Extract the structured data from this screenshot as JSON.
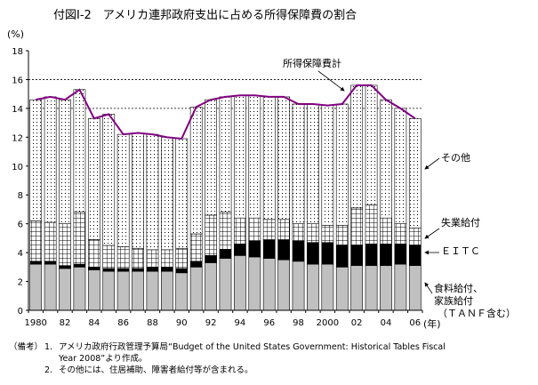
{
  "title": "付図Ⅰ-2　アメリカ連邦政府支出に占める所得保障費の割合",
  "chart_data": {
    "type": "bar",
    "stacked": true,
    "x": [
      1980,
      1981,
      1982,
      1983,
      1984,
      1985,
      1986,
      1987,
      1988,
      1989,
      1990,
      1991,
      1992,
      1993,
      1994,
      1995,
      1996,
      1997,
      1998,
      1999,
      2000,
      2001,
      2002,
      2003,
      2004,
      2005,
      2006
    ],
    "x_tick_labels": [
      "1980",
      "82",
      "84",
      "86",
      "88",
      "90",
      "92",
      "94",
      "96",
      "98",
      "2000",
      "02",
      "04",
      "06"
    ],
    "x_tick_years": [
      1980,
      1982,
      1984,
      1986,
      1988,
      1990,
      1992,
      1994,
      1996,
      1998,
      2000,
      2002,
      2004,
      2006
    ],
    "xlabel": "(年)",
    "ylabel": "(%)",
    "ylim": [
      0,
      18
    ],
    "y_ticks": [
      0,
      2,
      4,
      6,
      8,
      10,
      12,
      14,
      16,
      18
    ],
    "gridlines": [
      14,
      16
    ],
    "series": [
      {
        "name": "食料給付、家族給付（ＴＡＮＦ含む）",
        "color": "#c0c0c0",
        "values": [
          3.2,
          3.2,
          2.9,
          3.0,
          2.8,
          2.7,
          2.7,
          2.7,
          2.7,
          2.7,
          2.6,
          3.0,
          3.3,
          3.6,
          3.8,
          3.7,
          3.6,
          3.5,
          3.4,
          3.2,
          3.2,
          3.0,
          3.1,
          3.1,
          3.1,
          3.2,
          3.1
        ]
      },
      {
        "name": "ＥＩＴＣ",
        "color": "#000000",
        "values": [
          0.2,
          0.2,
          0.2,
          0.2,
          0.2,
          0.2,
          0.2,
          0.2,
          0.3,
          0.3,
          0.3,
          0.4,
          0.5,
          0.6,
          0.8,
          1.1,
          1.3,
          1.4,
          1.4,
          1.5,
          1.5,
          1.5,
          1.4,
          1.5,
          1.5,
          1.4,
          1.4
        ]
      },
      {
        "name": "失業給付",
        "color": "#ffffff",
        "values": [
          2.8,
          2.7,
          2.9,
          3.6,
          1.9,
          1.6,
          1.5,
          1.4,
          1.2,
          1.2,
          1.4,
          1.9,
          2.8,
          2.6,
          1.8,
          1.6,
          1.4,
          1.4,
          1.2,
          1.3,
          1.2,
          1.4,
          2.6,
          2.7,
          1.8,
          1.4,
          1.2
        ]
      },
      {
        "name": "その他",
        "color": "#ffffff",
        "pattern": "dots",
        "values": [
          8.4,
          8.7,
          8.6,
          8.5,
          8.4,
          9.1,
          7.8,
          8.0,
          8.0,
          7.8,
          7.6,
          8.8,
          8.0,
          8.0,
          8.5,
          8.5,
          8.5,
          8.5,
          8.3,
          8.3,
          8.3,
          8.4,
          8.5,
          8.3,
          8.2,
          8.0,
          7.6
        ]
      }
    ],
    "total": {
      "name": "所得保障費計",
      "color": "#800080",
      "values": [
        14.6,
        14.8,
        14.6,
        15.3,
        13.3,
        13.6,
        12.2,
        12.3,
        12.2,
        12.0,
        11.9,
        14.1,
        14.6,
        14.8,
        14.9,
        14.9,
        14.8,
        14.8,
        14.3,
        14.3,
        14.2,
        14.3,
        15.6,
        15.6,
        14.6,
        14.0,
        13.3
      ]
    },
    "annotations": {
      "total_label": "所得保障費計",
      "other_label": "その他",
      "unemp_label": "失業給付",
      "eitc_label": "ＥＩＴＣ",
      "food_label_1": "食料給付、",
      "food_label_2": "家族給付",
      "food_label_3": "（ＴＡＮＦ含む）"
    }
  },
  "notes": {
    "prefix": "（備考）",
    "n1": "1.",
    "line1": "アメリカ政府行政管理予算局“Budget of the United States Government: Historical Tables Fiscal",
    "line1b": "Year 2008”より作成。",
    "n2": "2.",
    "line2": "その他には、住居補助、障害者給付等が含まれる。"
  }
}
